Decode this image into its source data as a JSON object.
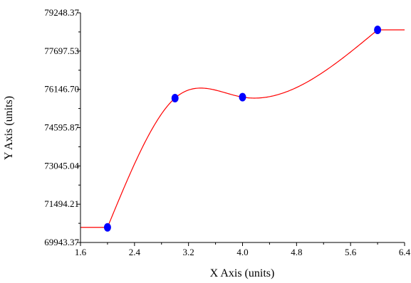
{
  "chart_data": {
    "type": "line",
    "title": "",
    "xlabel": "X Axis (units)",
    "ylabel": "Y Axis (units)",
    "xlim": [
      1.6,
      6.4
    ],
    "ylim": [
      69943.37,
      79248.37
    ],
    "x_ticks": [
      "1.6",
      "2.4",
      "3.2",
      "4.0",
      "4.8",
      "5.6",
      "6.4"
    ],
    "y_ticks": [
      "69943.37",
      "71494.21",
      "73045.04",
      "74595.87",
      "76146.70",
      "77697.53",
      "79248.37"
    ],
    "grid": false,
    "legend": "none",
    "series": [
      {
        "x": [
          2.0,
          3.0,
          4.0,
          6.0
        ],
        "y": [
          70556,
          75792,
          75832,
          78556
        ],
        "line_color": "#ff0000",
        "marker_color": "#0000ff"
      }
    ]
  }
}
